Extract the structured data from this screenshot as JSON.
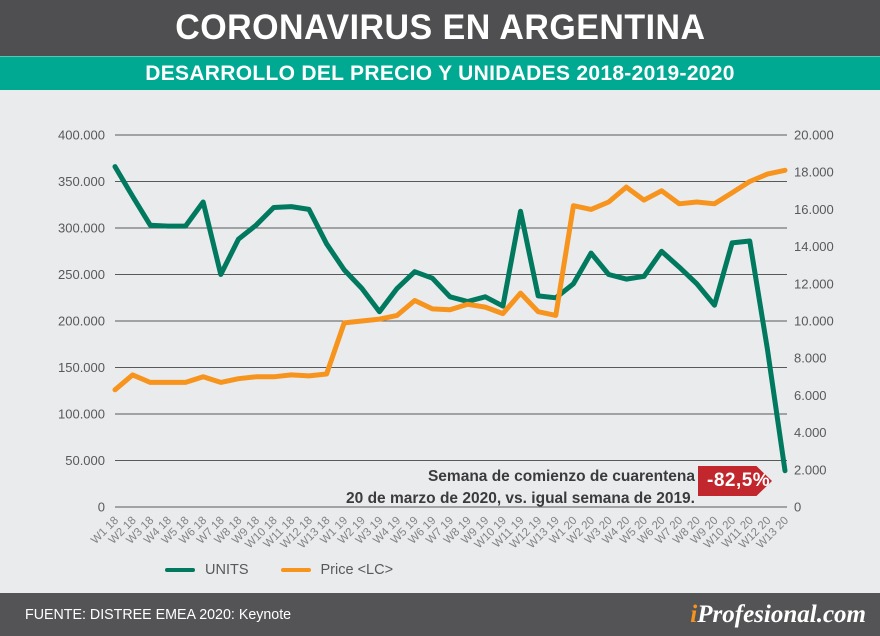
{
  "header": {
    "title": "CORONAVIRUS EN ARGENTINA",
    "subtitle": "DESARROLLO DEL PRECIO Y UNIDADES 2018-2019-2020"
  },
  "colors": {
    "header_bg": "#4F4F51",
    "subtitle_bg": "#00A992",
    "chart_bg": "#E9EBED",
    "units_line": "#00795E",
    "price_line": "#F7941E",
    "badge_bg": "#C1272D",
    "grid_line": "#58595B",
    "axis_text": "#58595B",
    "xaxis_text": "#808285",
    "footer_bg": "#545456",
    "brand_accent": "#F7941E"
  },
  "chart_data": {
    "type": "line",
    "title": "Desarrollo del precio y unidades 2018-2019-2020",
    "grid": true,
    "legend_position": "bottom",
    "categories": [
      "W1 18",
      "W2 18",
      "W3 18",
      "W4 18",
      "W5 18",
      "W6 18",
      "W7 18",
      "W8 18",
      "W9 18",
      "W10 18",
      "W11 18",
      "W12 18",
      "W13 18",
      "W1 19",
      "W2 19",
      "W3 19",
      "W4 19",
      "W5 19",
      "W6 19",
      "W7 19",
      "W8 19",
      "W9 19",
      "W10 19",
      "W11 19",
      "W12 19",
      "W13 19",
      "W1 20",
      "W2 20",
      "W3 20",
      "W4 20",
      "W5 20",
      "W6 20",
      "W7 20",
      "W8 20",
      "W9 20",
      "W10 20",
      "W11 20",
      "W12 20",
      "W13 20"
    ],
    "series": [
      {
        "name": "UNITS",
        "axis": "left",
        "color": "#00795E",
        "values": [
          366000,
          334000,
          303000,
          302000,
          302000,
          328000,
          250000,
          288000,
          303000,
          322000,
          323000,
          320000,
          283000,
          255000,
          235000,
          210000,
          235000,
          253000,
          246000,
          226000,
          221000,
          226000,
          216000,
          318000,
          227000,
          225000,
          240000,
          273000,
          250000,
          245000,
          248000,
          275000,
          258000,
          240000,
          217000,
          284000,
          286000,
          170000,
          39000
        ]
      },
      {
        "name": "Price <LC>",
        "axis": "right",
        "color": "#F7941E",
        "values": [
          6300,
          7100,
          6700,
          6700,
          6700,
          7000,
          6700,
          6900,
          7000,
          7000,
          7100,
          7050,
          7150,
          9900,
          10000,
          10100,
          10300,
          11100,
          10650,
          10600,
          10900,
          10750,
          10400,
          11500,
          10500,
          10300,
          16200,
          16000,
          16400,
          17200,
          16500,
          17000,
          16300,
          16400,
          16300,
          16900,
          17500,
          17900,
          18100
        ]
      }
    ],
    "left_axis": {
      "min": 0,
      "max": 400000,
      "ticks": [
        "400.000",
        "350.000",
        "300.000",
        "250.000",
        "200.000",
        "150.000",
        "100.000",
        "50.000",
        "0"
      ]
    },
    "right_axis": {
      "min": 0,
      "max": 20000,
      "ticks": [
        "20.000",
        "18.000",
        "16.000",
        "14.000",
        "12.000",
        "10.000",
        "8.000",
        "6.000",
        "4.000",
        "2.000",
        "0"
      ]
    }
  },
  "annotation": {
    "line1": "Semana de comienzo de cuarentena",
    "line2": "20 de marzo de 2020, vs. igual semana de 2019.",
    "badge": "-82,5%"
  },
  "footer": {
    "source": "FUENTE: DISTREE EMEA 2020: Keynote",
    "brand_i": "i",
    "brand_rest": "Profesional.com"
  }
}
